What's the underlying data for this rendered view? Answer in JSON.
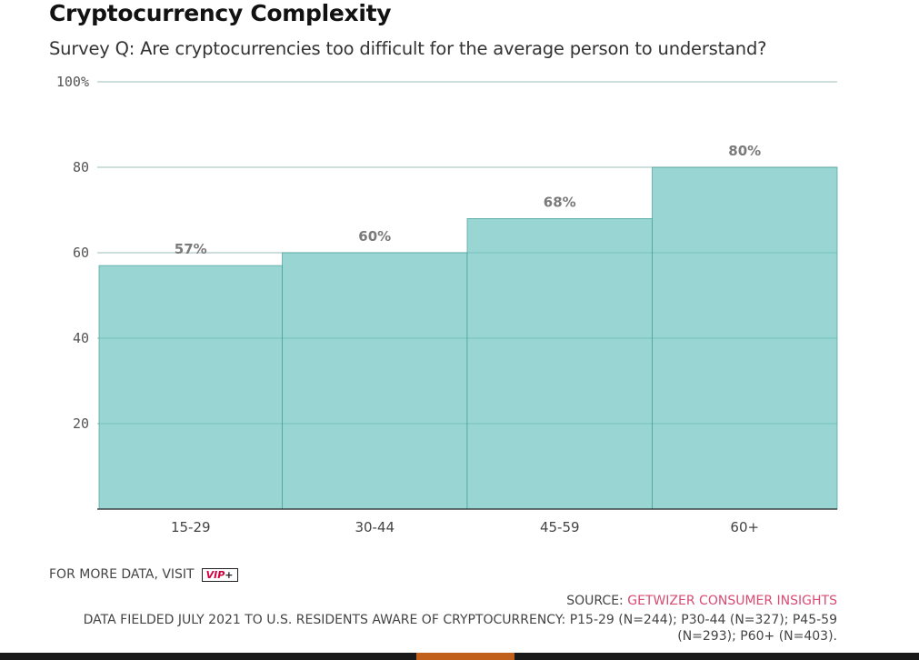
{
  "chart_data": {
    "type": "bar",
    "title": "Cryptocurrency Complexity",
    "subtitle": "Survey Q: Are cryptocurrencies too difficult for the average person to understand?",
    "categories": [
      "15-29",
      "30-44",
      "45-59",
      "60+"
    ],
    "values": [
      57,
      60,
      68,
      80
    ],
    "data_labels": [
      "57%",
      "60%",
      "68%",
      "80%"
    ],
    "yticks": [
      {
        "value": 20,
        "label": "20"
      },
      {
        "value": 40,
        "label": "40"
      },
      {
        "value": 60,
        "label": "60"
      },
      {
        "value": 80,
        "label": "80"
      },
      {
        "value": 100,
        "label": "100%"
      }
    ],
    "ylim": [
      0,
      100
    ],
    "xlabel": "",
    "ylabel": "",
    "grid": true,
    "bar_color": "#99d6d3",
    "bar_edge_color": "#3d9a94"
  },
  "footer": {
    "more_data_prefix": "FOR MORE DATA, VISIT",
    "vip_text": "VIP",
    "vip_plus": "+",
    "source_prefix": "SOURCE: ",
    "source_name": "GETWIZER CONSUMER INSIGHTS",
    "note": "DATA FIELDED JULY 2021 TO U.S. RESIDENTS AWARE OF CRYPTOCURRENCY: P15-29 (N=244); P30-44 (N=327); P45-59 (N=293); P60+ (N=403)."
  },
  "colors": {
    "source_link": "#d94b73",
    "vip_red": "#d3003f",
    "accent_bar": "#c0601c"
  }
}
